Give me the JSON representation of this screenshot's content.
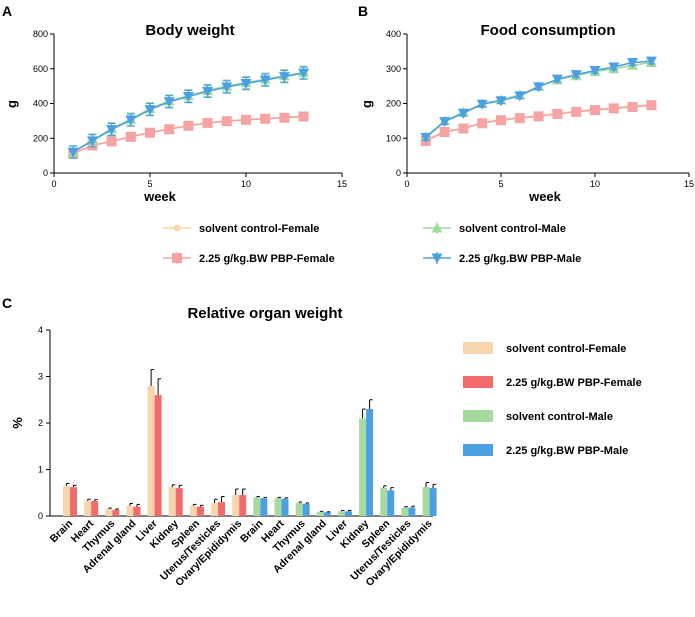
{
  "panels": {
    "a": "A",
    "b": "B",
    "c": "C"
  },
  "colors": {
    "sc_female": "#f7d6ad",
    "pbp_female": "#f26b6b",
    "sc_male": "#a8d9a0",
    "pbp_male": "#4aa0e0",
    "line_pbp_female": "#f5a3a3",
    "line_sc_male": "#9fdc9a",
    "line_pbp_male": "#4aa0e0"
  },
  "line_legend": [
    {
      "label": "solvent control-Female",
      "color": "sc_female",
      "marker": "dot"
    },
    {
      "label": "solvent control-Male",
      "color": "line_sc_male",
      "marker": "triangle-up"
    },
    {
      "label": "2.25 g/kg.BW PBP-Female",
      "color": "line_pbp_female",
      "marker": "square"
    },
    {
      "label": "2.25 g/kg.BW PBP-Male",
      "color": "line_pbp_male",
      "marker": "triangle-down"
    }
  ],
  "bar_legend": [
    {
      "label": "solvent control-Female",
      "color": "sc_female"
    },
    {
      "label": "2.25 g/kg.BW PBP-Female",
      "color": "pbp_female"
    },
    {
      "label": "solvent control-Male",
      "color": "sc_male"
    },
    {
      "label": "2.25 g/kg.BW PBP-Male",
      "color": "pbp_male"
    }
  ],
  "chart_data": [
    {
      "id": "body_weight",
      "type": "line",
      "title": "Body weight",
      "xlabel": "week",
      "ylabel": "g",
      "xlim": [
        0,
        15
      ],
      "ylim": [
        0,
        800
      ],
      "xticks": [
        0,
        5,
        10,
        15
      ],
      "yticks": [
        0,
        200,
        400,
        600,
        800
      ],
      "x": [
        1,
        2,
        3,
        4,
        5,
        6,
        7,
        8,
        9,
        10,
        11,
        12,
        13
      ],
      "series": [
        {
          "name": "solvent control-Female",
          "color": "sc_female",
          "marker": "dot",
          "values": [
            115,
            160,
            185,
            210,
            235,
            255,
            275,
            290,
            300,
            308,
            315,
            320,
            328
          ],
          "error": 10
        },
        {
          "name": "2.25 g/kg.BW PBP-Female",
          "color": "line_pbp_female",
          "marker": "square",
          "values": [
            112,
            158,
            182,
            208,
            232,
            252,
            272,
            288,
            298,
            306,
            312,
            318,
            325
          ],
          "error": 10
        },
        {
          "name": "solvent control-Male",
          "color": "line_sc_male",
          "marker": "triangle-up",
          "values": [
            122,
            190,
            255,
            310,
            370,
            415,
            445,
            475,
            500,
            520,
            540,
            560,
            580
          ],
          "error": 35
        },
        {
          "name": "2.25 g/kg.BW PBP-Male",
          "color": "line_pbp_male",
          "marker": "triangle-down",
          "values": [
            120,
            185,
            250,
            305,
            365,
            410,
            440,
            470,
            495,
            515,
            535,
            555,
            575
          ],
          "error": 35
        }
      ]
    },
    {
      "id": "food_consumption",
      "type": "line",
      "title": "Food consumption",
      "xlabel": "week",
      "ylabel": "g",
      "xlim": [
        0,
        15
      ],
      "ylim": [
        0,
        400
      ],
      "xticks": [
        0,
        5,
        10,
        15
      ],
      "yticks": [
        0,
        100,
        200,
        300,
        400
      ],
      "x": [
        1,
        2,
        3,
        4,
        5,
        6,
        7,
        8,
        9,
        10,
        11,
        12,
        13
      ],
      "series": [
        {
          "name": "solvent control-Female",
          "color": "sc_female",
          "marker": "dot",
          "values": [
            95,
            120,
            130,
            145,
            155,
            160,
            165,
            172,
            178,
            183,
            188,
            192,
            198
          ],
          "error": 8
        },
        {
          "name": "2.25 g/kg.BW PBP-Female",
          "color": "line_pbp_female",
          "marker": "square",
          "values": [
            92,
            118,
            128,
            143,
            152,
            158,
            163,
            170,
            176,
            181,
            186,
            190,
            195
          ],
          "error": 8
        },
        {
          "name": "solvent control-Male",
          "color": "line_sc_male",
          "marker": "triangle-up",
          "values": [
            105,
            150,
            175,
            200,
            210,
            225,
            250,
            268,
            280,
            292,
            300,
            310,
            318
          ],
          "error": 8
        },
        {
          "name": "2.25 g/kg.BW PBP-Male",
          "color": "line_pbp_male",
          "marker": "triangle-down",
          "values": [
            102,
            148,
            172,
            198,
            208,
            222,
            248,
            270,
            283,
            295,
            305,
            318,
            322
          ],
          "error": 8
        }
      ]
    },
    {
      "id": "relative_organ_weight",
      "type": "bar",
      "title": "Relative organ weight",
      "xlabel": "",
      "ylabel": "%",
      "ylim": [
        0,
        4
      ],
      "yticks": [
        0,
        1,
        2,
        3,
        4
      ],
      "groups": [
        {
          "sex": "female",
          "categories": [
            "Brain",
            "Heart",
            "Thymus",
            "Adrenal gland",
            "Liver",
            "Kidney",
            "Spleen",
            "Uterus/Testicles",
            "Ovary/Epididymis"
          ],
          "series": [
            {
              "name": "solvent control-Female",
              "color": "sc_female",
              "values": [
                0.65,
                0.33,
                0.15,
                0.22,
                2.8,
                0.62,
                0.22,
                0.28,
                0.45
              ],
              "errors": [
                0.05,
                0.03,
                0.02,
                0.05,
                0.35,
                0.05,
                0.03,
                0.08,
                0.13
              ]
            },
            {
              "name": "2.25 g/kg.BW PBP-Female",
              "color": "pbp_female",
              "values": [
                0.62,
                0.32,
                0.13,
                0.2,
                2.6,
                0.6,
                0.2,
                0.3,
                0.45
              ],
              "errors": [
                0.04,
                0.03,
                0.02,
                0.05,
                0.35,
                0.06,
                0.03,
                0.12,
                0.13
              ]
            }
          ]
        },
        {
          "sex": "male",
          "categories": [
            "Brain",
            "Heart",
            "Thymus",
            "Adrenal gland",
            "Liver",
            "Kidney",
            "Spleen",
            "Uterus/Testicles",
            "Ovary/Epididymis"
          ],
          "series": [
            {
              "name": "solvent control-Male",
              "color": "sc_male",
              "values": [
                0.4,
                0.38,
                0.28,
                0.09,
                0.1,
                2.1,
                0.6,
                0.18,
                0.62
              ],
              "errors": [
                0.02,
                0.02,
                0.02,
                0.01,
                0.02,
                0.2,
                0.05,
                0.02,
                0.1
              ]
            },
            {
              "name": "2.25 g/kg.BW PBP-Male",
              "color": "pbp_male",
              "values": [
                0.38,
                0.37,
                0.26,
                0.08,
                0.1,
                2.3,
                0.55,
                0.18,
                0.6
              ],
              "errors": [
                0.02,
                0.02,
                0.02,
                0.01,
                0.02,
                0.2,
                0.06,
                0.03,
                0.08
              ]
            }
          ]
        }
      ]
    }
  ]
}
